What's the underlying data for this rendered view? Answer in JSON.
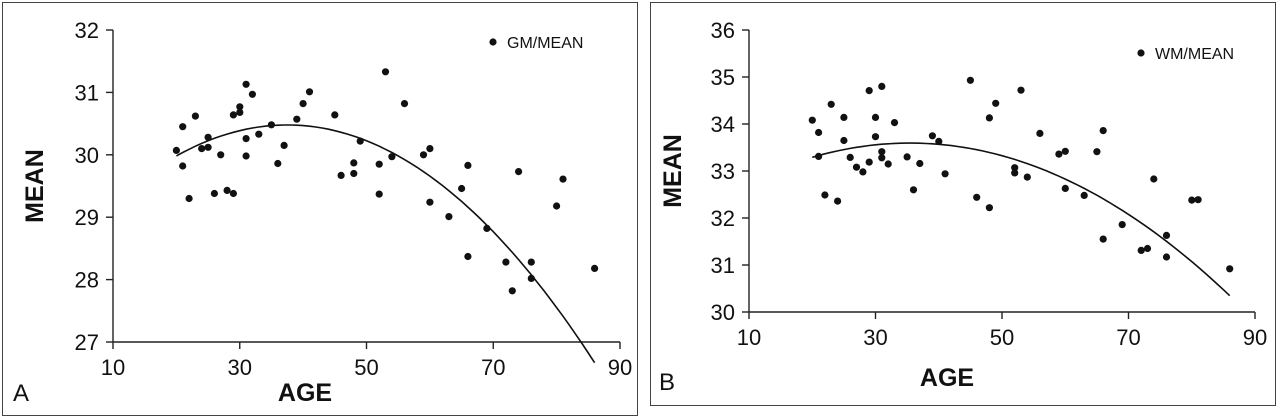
{
  "chart_data": [
    {
      "type": "scatter",
      "panel_label": "A",
      "xlabel": "AGE",
      "ylabel": "MEAN",
      "xlim": [
        10,
        90
      ],
      "ylim": [
        27,
        32
      ],
      "xticks": [
        10,
        30,
        50,
        70,
        90
      ],
      "yticks": [
        27,
        28,
        29,
        30,
        31,
        32
      ],
      "legend": "top-right",
      "series": [
        {
          "name": "GM/MEAN",
          "x": [
            20,
            21,
            21,
            22,
            23,
            24,
            25,
            25,
            26,
            27,
            28,
            29,
            29,
            30,
            30,
            31,
            31,
            31,
            32,
            33,
            35,
            36,
            37,
            39,
            40,
            41,
            45,
            46,
            48,
            48,
            49,
            52,
            52,
            53,
            54,
            56,
            59,
            60,
            60,
            63,
            65,
            66,
            66,
            69,
            72,
            73,
            74,
            76,
            76,
            80,
            81,
            86
          ],
          "y": [
            30.07,
            30.45,
            29.82,
            29.3,
            30.62,
            30.1,
            30.28,
            30.12,
            29.38,
            30,
            29.43,
            30.64,
            29.38,
            30.77,
            30.68,
            31.13,
            30.26,
            29.98,
            30.97,
            30.33,
            30.48,
            29.86,
            30.15,
            30.57,
            30.82,
            31.01,
            30.64,
            29.67,
            29.87,
            29.7,
            30.22,
            29.37,
            29.85,
            31.33,
            29.97,
            30.82,
            30,
            29.24,
            30.1,
            29.01,
            29.46,
            29.83,
            28.37,
            28.82,
            28.28,
            27.82,
            29.73,
            28.28,
            28.02,
            29.18,
            29.61,
            28.18
          ]
        }
      ],
      "fit": {
        "type": "quadratic",
        "x": [
          20,
          86
        ],
        "coef": [
          28.2,
          0.1215,
          -0.00162
        ]
      }
    },
    {
      "type": "scatter",
      "panel_label": "B",
      "xlabel": "AGE",
      "ylabel": "MEAN",
      "xlim": [
        10,
        90
      ],
      "ylim": [
        30,
        36
      ],
      "xticks": [
        10,
        30,
        50,
        70,
        90
      ],
      "yticks": [
        30,
        31,
        32,
        33,
        34,
        35,
        36
      ],
      "legend": "top-right",
      "series": [
        {
          "name": "WM/MEAN",
          "x": [
            20,
            21,
            21,
            22,
            23,
            24,
            25,
            25,
            26,
            27,
            28,
            29,
            29,
            30,
            30,
            31,
            31,
            31,
            32,
            33,
            35,
            36,
            37,
            39,
            40,
            41,
            45,
            46,
            48,
            48,
            49,
            52,
            52,
            53,
            54,
            56,
            59,
            60,
            60,
            63,
            65,
            66,
            66,
            69,
            72,
            73,
            74,
            76,
            76,
            80,
            81,
            86
          ],
          "y": [
            34.08,
            33.82,
            33.31,
            32.49,
            34.42,
            32.36,
            34.14,
            33.65,
            33.29,
            33.08,
            32.98,
            33.19,
            34.71,
            34.14,
            33.73,
            34.8,
            33.41,
            33.28,
            33.15,
            34.03,
            33.3,
            32.6,
            33.16,
            33.75,
            33.63,
            32.94,
            34.93,
            32.44,
            34.13,
            32.22,
            34.44,
            33.07,
            32.96,
            34.72,
            32.87,
            33.8,
            33.36,
            32.63,
            33.42,
            32.48,
            33.41,
            33.86,
            31.55,
            31.86,
            31.31,
            31.35,
            32.83,
            31.17,
            31.63,
            32.38,
            32.39,
            30.92
          ]
        }
      ],
      "fit": {
        "type": "quadratic",
        "x": [
          20,
          86
        ],
        "coef": [
          32.0,
          0.09,
          -0.00127
        ]
      }
    }
  ]
}
